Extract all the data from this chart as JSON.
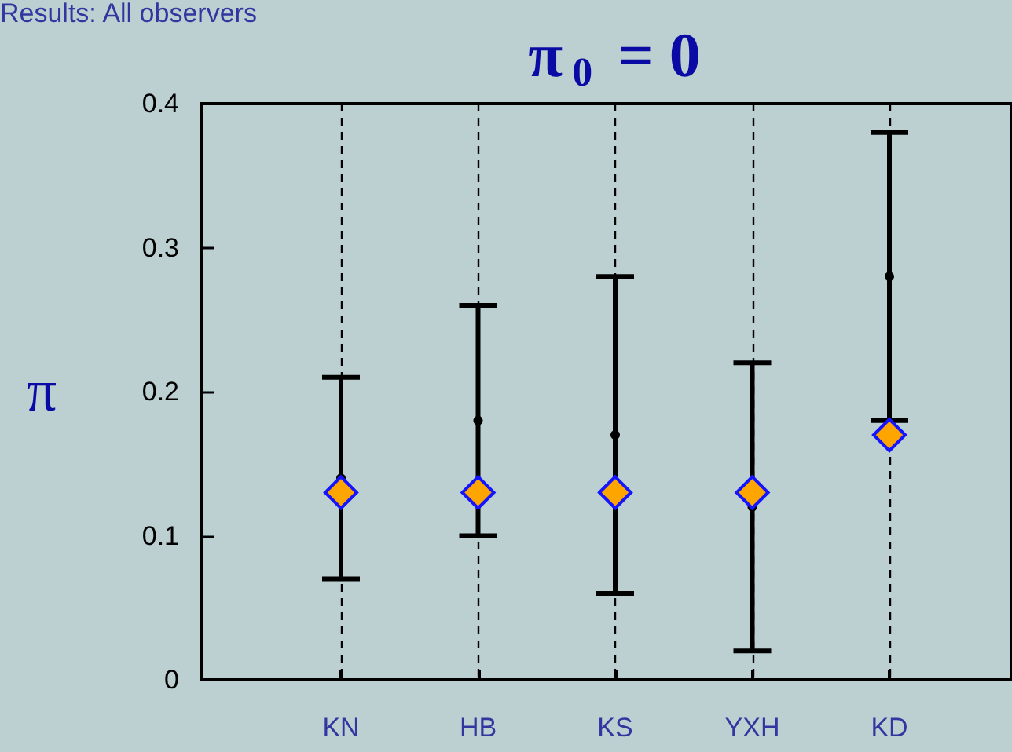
{
  "chart_data": {
    "type": "scatter",
    "title": "π$_{0}$ = 0",
    "ylabel": "π",
    "annotations": [
      "Results: All observers"
    ],
    "categories": [
      "KN",
      "HB",
      "KS",
      "YXH",
      "KD"
    ],
    "series": [
      {
        "color": "#000000",
        "marker": "circle",
        "values": [
          0.14,
          0.18,
          0.17,
          0.12,
          0.28
        ],
        "errors": [
          [
            0.07,
            0.21
          ],
          [
            0.1,
            0.26
          ],
          [
            0.06,
            0.28
          ],
          [
            0.02,
            0.22
          ],
          [
            0.18,
            0.38
          ]
        ]
      },
      {
        "color": "#ffa500",
        "marker": "diamond",
        "values": [
          0.13,
          0.13,
          0.13,
          0.13,
          0.17
        ]
      }
    ],
    "ylim": [
      0,
      0.4
    ],
    "yticks": [
      0,
      0.1,
      0.2,
      0.3,
      0.4
    ],
    "grid": "x"
  }
}
